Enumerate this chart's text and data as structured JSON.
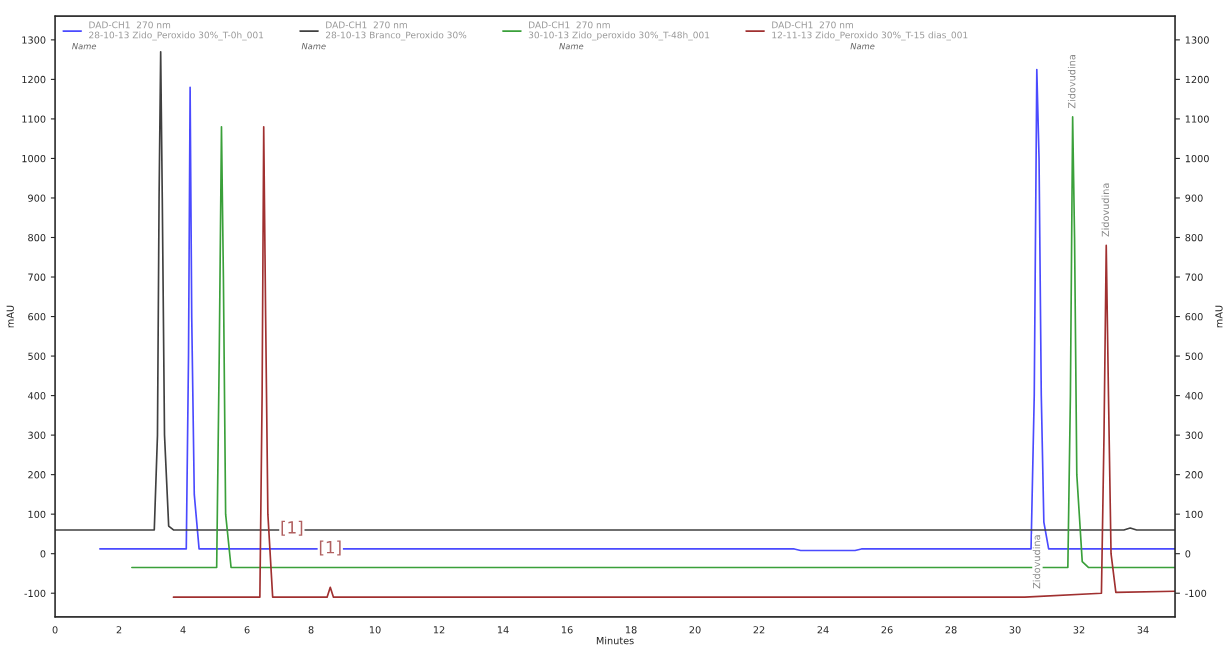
{
  "chart_data": {
    "type": "line",
    "xlabel": "Minutes",
    "ylabel": "mAU",
    "y2label": "mAU",
    "xlim": [
      0,
      35
    ],
    "xticks": [
      0,
      2,
      4,
      6,
      8,
      10,
      12,
      14,
      16,
      18,
      20,
      22,
      24,
      26,
      28,
      30,
      32,
      34
    ],
    "ylim": [
      -160,
      1360
    ],
    "yticks": [
      -100,
      0,
      100,
      200,
      300,
      400,
      500,
      600,
      700,
      800,
      900,
      1000,
      1100,
      1200,
      1300
    ],
    "y2lim": [
      -160,
      1360
    ],
    "y2ticks": [
      -100,
      0,
      100,
      200,
      300,
      400,
      500,
      600,
      700,
      800,
      900,
      1000,
      1100,
      1200,
      1300
    ],
    "legend": "top",
    "grid": false,
    "series": [
      {
        "name": "DAD-CH1  270 nm\n28-10-13 Zido_Peroxido 30%_T-0h_001",
        "color": "#4a4aff",
        "x": [
          1.4,
          4.1,
          4.17,
          4.22,
          4.27,
          4.35,
          4.5,
          23.1,
          23.3,
          25.0,
          25.2,
          30.5,
          30.6,
          30.68,
          30.75,
          30.82,
          30.9,
          31.05,
          35
        ],
        "values": [
          12,
          12,
          500,
          1180,
          600,
          150,
          12,
          12,
          8,
          8,
          12,
          12,
          400,
          1225,
          1000,
          400,
          80,
          12,
          12
        ]
      },
      {
        "name": "DAD-CH1  270 nm\n28-10-13 Branco_Peroxido 30%",
        "color": "#404040",
        "x": [
          0,
          3.1,
          3.2,
          3.25,
          3.3,
          3.35,
          3.42,
          3.55,
          3.7,
          33.4,
          33.6,
          33.8,
          35
        ],
        "values": [
          60,
          60,
          300,
          900,
          1270,
          900,
          300,
          70,
          60,
          60,
          65,
          60,
          60
        ]
      },
      {
        "name": "DAD-CH1  270 nm\n30-10-13 Zido_peroxido 30%_T-48h_001",
        "color": "#3aa03a",
        "x": [
          2.4,
          5.05,
          5.13,
          5.2,
          5.26,
          5.33,
          5.5,
          31.65,
          31.73,
          31.8,
          31.86,
          31.93,
          32.1,
          32.3,
          35
        ],
        "values": [
          -35,
          -35,
          500,
          1080,
          700,
          100,
          -35,
          -35,
          400,
          1105,
          800,
          200,
          -20,
          -35,
          -35
        ]
      },
      {
        "name": "DAD-CH1  270 nm\n12-11-13 Zido_Peroxido 30%_T-15 dias_001",
        "color": "#a03030",
        "x": [
          3.7,
          6.4,
          6.47,
          6.52,
          6.58,
          6.65,
          6.8,
          8.5,
          8.6,
          8.7,
          30.3,
          32.7,
          32.78,
          32.85,
          32.92,
          33.0,
          33.15,
          35
        ],
        "values": [
          -110,
          -110,
          400,
          1080,
          600,
          100,
          -110,
          -110,
          -85,
          -110,
          -110,
          -100,
          300,
          780,
          400,
          0,
          -98,
          -95
        ]
      }
    ],
    "annotations": [
      "Name",
      "Name",
      "Name",
      "Name",
      {
        "text": "[1]",
        "x": 7.4,
        "y": -35
      },
      {
        "text": "[1]",
        "x": 8.6,
        "y": -85
      },
      {
        "text": "Zidovudina",
        "x": 31.8,
        "y": 1105
      },
      {
        "text": "Zidovudina",
        "x": 32.85,
        "y": 780
      },
      {
        "text": "Zidovudina",
        "x": 30.7,
        "y": -110
      }
    ]
  }
}
